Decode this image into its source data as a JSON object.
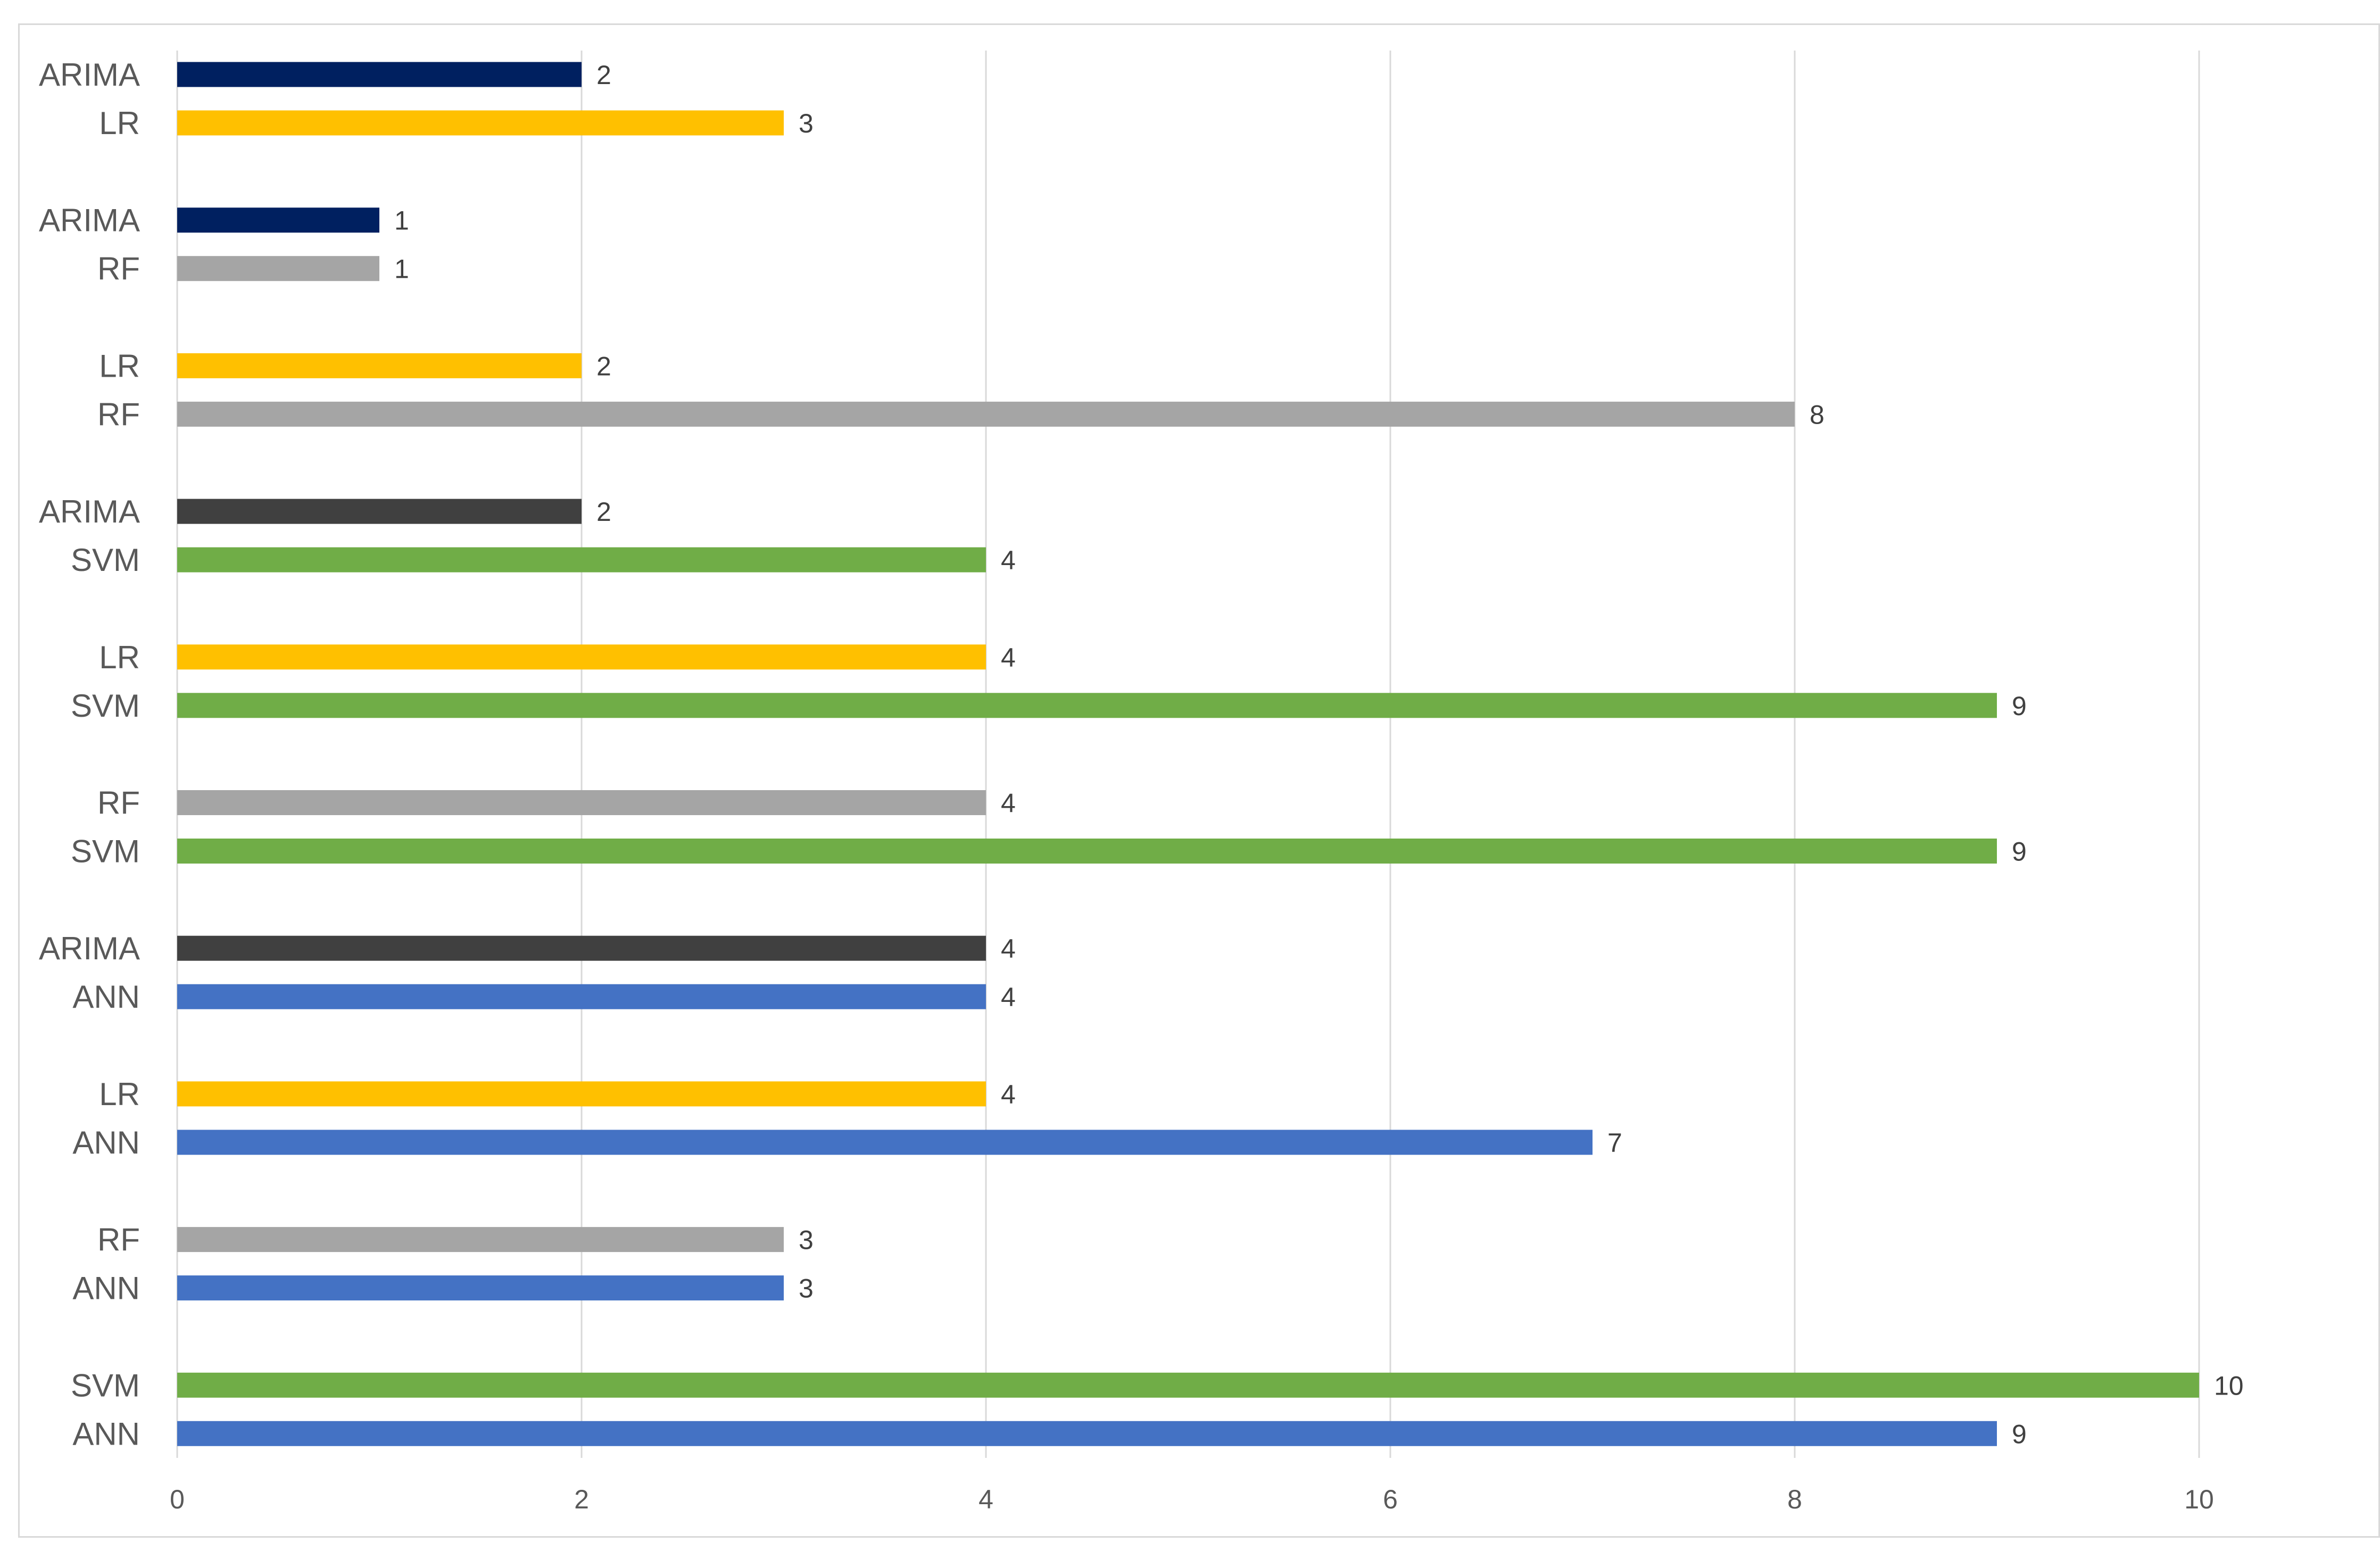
{
  "chart_data": {
    "type": "bar",
    "orientation": "horizontal",
    "xlim": [
      0,
      10
    ],
    "x_ticks": [
      0,
      2,
      4,
      6,
      8,
      10
    ],
    "grid": "vertical-major",
    "legend": "none",
    "title": "",
    "xlabel": "",
    "ylabel": "",
    "colors": {
      "ANN": "#4472C4",
      "SVM": "#70AD47",
      "RF": "#A5A5A5",
      "LR": "#FFC000",
      "ARIMA_navy": "#002060",
      "ARIMA_dark": "#404040"
    },
    "groups": [
      {
        "bars": [
          {
            "label": "ARIMA",
            "value": 2,
            "color": "#002060"
          },
          {
            "label": "LR",
            "value": 3,
            "color": "#FFC000"
          }
        ]
      },
      {
        "bars": [
          {
            "label": "ARIMA",
            "value": 1,
            "color": "#002060"
          },
          {
            "label": "RF",
            "value": 1,
            "color": "#A5A5A5"
          }
        ]
      },
      {
        "bars": [
          {
            "label": "LR",
            "value": 2,
            "color": "#FFC000"
          },
          {
            "label": "RF",
            "value": 8,
            "color": "#A5A5A5"
          }
        ]
      },
      {
        "bars": [
          {
            "label": "ARIMA",
            "value": 2,
            "color": "#404040"
          },
          {
            "label": "SVM",
            "value": 4,
            "color": "#70AD47"
          }
        ]
      },
      {
        "bars": [
          {
            "label": "LR",
            "value": 4,
            "color": "#FFC000"
          },
          {
            "label": "SVM",
            "value": 9,
            "color": "#70AD47"
          }
        ]
      },
      {
        "bars": [
          {
            "label": "RF",
            "value": 4,
            "color": "#A5A5A5"
          },
          {
            "label": "SVM",
            "value": 9,
            "color": "#70AD47"
          }
        ]
      },
      {
        "bars": [
          {
            "label": "ARIMA",
            "value": 4,
            "color": "#404040"
          },
          {
            "label": "ANN",
            "value": 4,
            "color": "#4472C4"
          }
        ]
      },
      {
        "bars": [
          {
            "label": "LR",
            "value": 4,
            "color": "#FFC000"
          },
          {
            "label": "ANN",
            "value": 7,
            "color": "#4472C4"
          }
        ]
      },
      {
        "bars": [
          {
            "label": "RF",
            "value": 3,
            "color": "#A5A5A5"
          },
          {
            "label": "ANN",
            "value": 3,
            "color": "#4472C4"
          }
        ]
      },
      {
        "bars": [
          {
            "label": "SVM",
            "value": 10,
            "color": "#70AD47"
          },
          {
            "label": "ANN",
            "value": 9,
            "color": "#4472C4"
          }
        ]
      }
    ]
  }
}
